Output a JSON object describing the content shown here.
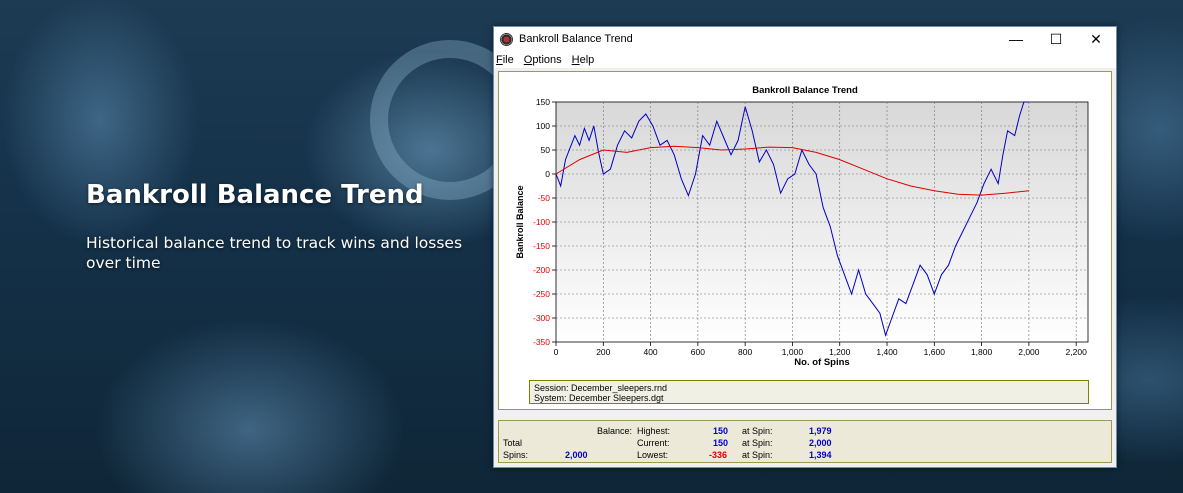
{
  "hero": {
    "title": "Bankroll Balance Trend",
    "subtitle": "Historical balance trend to track wins and losses over time"
  },
  "window": {
    "title": "Bankroll Balance Trend",
    "controls": {
      "minimize": "—",
      "maximize": "☐",
      "close": "✕"
    },
    "menu": [
      {
        "first": "F",
        "rest": "ile"
      },
      {
        "first": "O",
        "rest": "ptions"
      },
      {
        "first": "H",
        "rest": "elp"
      }
    ]
  },
  "chart_data": {
    "type": "line",
    "title": "Bankroll Balance Trend",
    "xlabel": "No. of Spins",
    "ylabel": "Bankroll Balance",
    "xlim": [
      0,
      2250
    ],
    "ylim": [
      -350,
      150
    ],
    "xticks": [
      0,
      200,
      400,
      600,
      800,
      1000,
      1200,
      1400,
      1600,
      1800,
      2000,
      2200
    ],
    "xtick_labels": [
      "0",
      "200",
      "400",
      "600",
      "800",
      "1,000",
      "1,200",
      "1,400",
      "1,600",
      "1,800",
      "2,000",
      "2,200"
    ],
    "yticks": [
      150,
      100,
      50,
      0,
      -50,
      -100,
      -150,
      -200,
      -250,
      -300,
      -350
    ],
    "grid": true,
    "series": [
      {
        "color": "#0000c8",
        "x": [
          0,
          20,
          40,
          60,
          80,
          100,
          120,
          140,
          160,
          180,
          200,
          230,
          260,
          290,
          320,
          350,
          380,
          410,
          440,
          470,
          500,
          530,
          560,
          590,
          620,
          650,
          680,
          710,
          740,
          770,
          800,
          830,
          860,
          890,
          920,
          950,
          980,
          1010,
          1040,
          1070,
          1100,
          1130,
          1160,
          1190,
          1220,
          1250,
          1280,
          1310,
          1340,
          1370,
          1394,
          1420,
          1450,
          1480,
          1510,
          1540,
          1570,
          1600,
          1630,
          1660,
          1690,
          1720,
          1750,
          1780,
          1810,
          1840,
          1870,
          1890,
          1910,
          1940,
          1960,
          1979,
          2000
        ],
        "y": [
          0,
          -25,
          30,
          55,
          80,
          60,
          95,
          70,
          100,
          45,
          0,
          10,
          60,
          90,
          75,
          110,
          125,
          100,
          60,
          70,
          40,
          -10,
          -45,
          0,
          80,
          60,
          110,
          75,
          40,
          70,
          140,
          90,
          25,
          50,
          20,
          -40,
          -10,
          0,
          50,
          20,
          0,
          -70,
          -110,
          -170,
          -210,
          -250,
          -200,
          -250,
          -270,
          -290,
          -336,
          -300,
          -260,
          -270,
          -230,
          -190,
          -210,
          -250,
          -210,
          -190,
          -150,
          -120,
          -90,
          -60,
          -20,
          10,
          -20,
          40,
          90,
          80,
          120,
          150,
          150
        ]
      },
      {
        "color": "#e00000",
        "x": [
          0,
          100,
          200,
          300,
          400,
          500,
          600,
          700,
          800,
          900,
          1000,
          1100,
          1200,
          1300,
          1400,
          1500,
          1600,
          1700,
          1800,
          1900,
          2000
        ],
        "y": [
          0,
          30,
          50,
          45,
          55,
          58,
          55,
          50,
          52,
          56,
          55,
          45,
          30,
          10,
          -10,
          -25,
          -35,
          -42,
          -44,
          -40,
          -35
        ]
      }
    ]
  },
  "info": {
    "session": "Session: December_sleepers.rnd",
    "system": "System: December Sleepers.dgt"
  },
  "stats": {
    "balance_label": "Balance:",
    "total_label": "Total",
    "spins_label": "Spins:",
    "spins_value": "2,000",
    "highest_label": "Highest:",
    "highest_value": "150",
    "highest_at_label": "at Spin:",
    "highest_at_value": "1,979",
    "current_label": "Current:",
    "current_value": "150",
    "current_at_label": "at Spin:",
    "current_at_value": "2,000",
    "lowest_label": "Lowest:",
    "lowest_value": "-336",
    "lowest_at_label": "at Spin:",
    "lowest_at_value": "1,394"
  }
}
